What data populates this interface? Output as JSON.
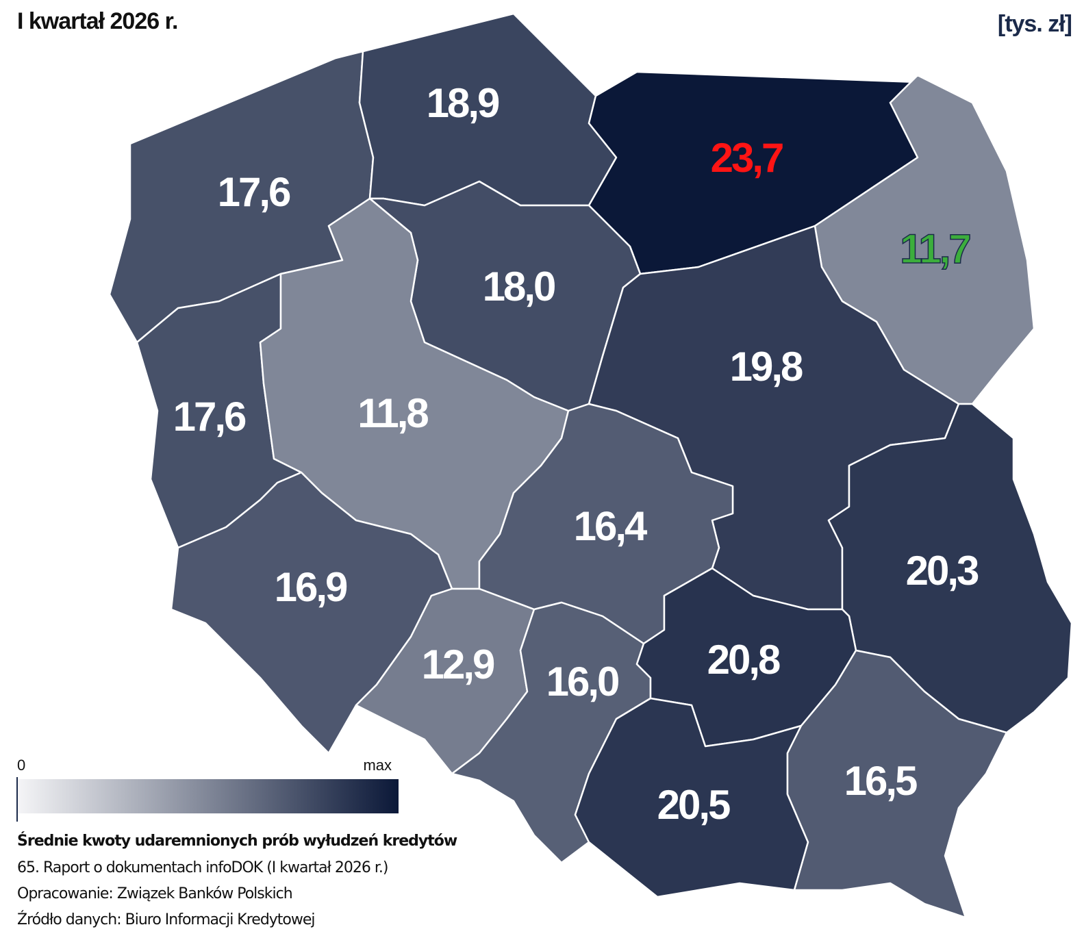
{
  "title": "I kwartał 2026 r.",
  "unit": "[tys. zł]",
  "map": {
    "values": [
      17.6,
      18.9,
      23.7,
      11.7,
      18.0,
      19.8,
      17.6,
      11.8,
      16.4,
      20.3,
      16.9,
      12.9,
      16.0,
      20.8,
      20.5,
      16.5
    ],
    "value_labels": [
      "17,6",
      "18,9",
      "23,7",
      "11,7",
      "18,0",
      "19,8",
      "17,6",
      "11,8",
      "16,4",
      "20,3",
      "16,9",
      "12,9",
      "16,0",
      "20,8",
      "20,5",
      "16,5"
    ],
    "highlight_colors": {
      "max": "#ff1414",
      "min": "#3cae3c"
    }
  },
  "legend": {
    "min_label": "0",
    "max_label": "max",
    "min_color": "#f5f5f7",
    "max_color": "#0b1838"
  },
  "footer": {
    "heading": "Średnie kwoty udaremnionych prób wyłudzeń kredytów",
    "lines": [
      "65. Raport o dokumentach infoDOK (I kwartał 2026 r.)",
      "Opracowanie: Związek Banków Polskich",
      "Źródło danych: Biuro Informacji Kredytowej"
    ]
  }
}
